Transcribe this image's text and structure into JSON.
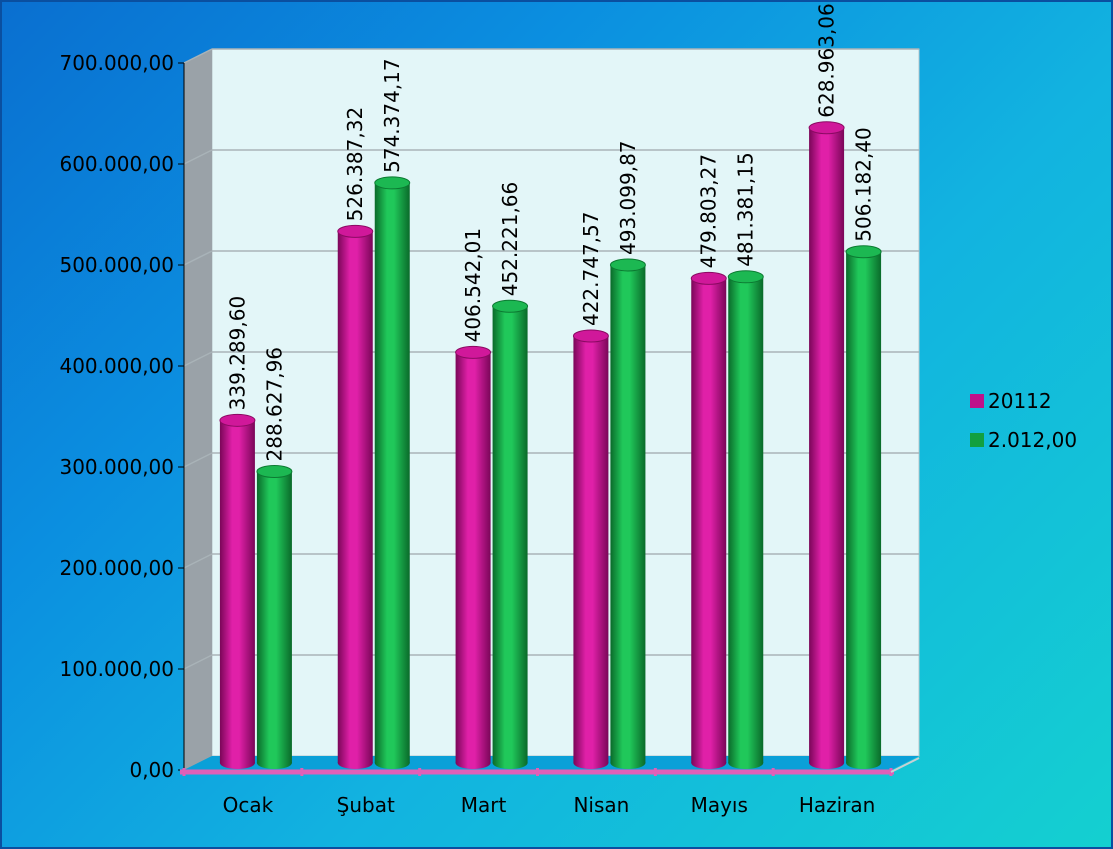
{
  "chart_data": {
    "type": "bar",
    "categories": [
      "Ocak",
      "Şubat",
      "Mart",
      "Nisan",
      "Mayıs",
      "Haziran"
    ],
    "series": [
      {
        "name": "20112",
        "color": "#c0108a",
        "values": [
          339289.6,
          526387.32,
          406542.01,
          422747.57,
          479803.27,
          628963.06
        ],
        "labels": [
          "339.289,60",
          "526.387,32",
          "406.542,01",
          "422.747,57",
          "479.803,27",
          "628.963,06"
        ]
      },
      {
        "name": "2.012,00",
        "color": "#12a040",
        "values": [
          288627.96,
          574374.17,
          452221.66,
          493099.87,
          481381.15,
          506182.4
        ],
        "labels": [
          "288.627,96",
          "574.374,17",
          "452.221,66",
          "493.099,87",
          "481.381,15",
          "506.182,40"
        ]
      }
    ],
    "ylim": [
      0,
      700000
    ],
    "yticks": [
      0,
      100000,
      200000,
      300000,
      400000,
      500000,
      600000,
      700000
    ],
    "ytick_labels": [
      "0,00",
      "100.000,00",
      "200.000,00",
      "300.000,00",
      "400.000,00",
      "500.000,00",
      "600.000,00",
      "700.000,00"
    ],
    "grid": true,
    "legend": "right",
    "title": "",
    "xlabel": "",
    "ylabel": ""
  }
}
